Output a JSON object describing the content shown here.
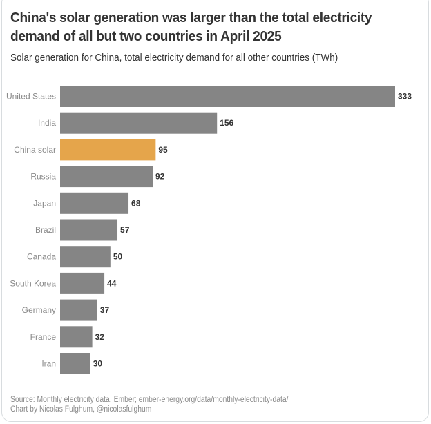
{
  "chart_data": {
    "type": "bar",
    "orientation": "horizontal",
    "title": "China's solar generation was larger than the total electricity demand of all but two countries in April 2025",
    "subtitle": "Solar generation for China, total electricity demand for all other countries (TWh)",
    "xlabel": "",
    "ylabel": "",
    "xlim": [
      0,
      333
    ],
    "grid": false,
    "categories": [
      "United States",
      "India",
      "China solar",
      "Russia",
      "Japan",
      "Brazil",
      "Canada",
      "South Korea",
      "Germany",
      "France",
      "Iran"
    ],
    "values": [
      333,
      156,
      95,
      92,
      68,
      57,
      50,
      44,
      37,
      32,
      30
    ],
    "highlight": "China solar",
    "colors": {
      "default": "#858585",
      "highlight": "#E5A54B",
      "label": "#333333",
      "category": "#8a8a8a"
    },
    "source": "Source: Monthly electricity data, Ember; ember-energy.org/data/monthly-electricity-data/",
    "credit": "Chart by Nicolas Fulghum, @nicolasfulghum"
  }
}
